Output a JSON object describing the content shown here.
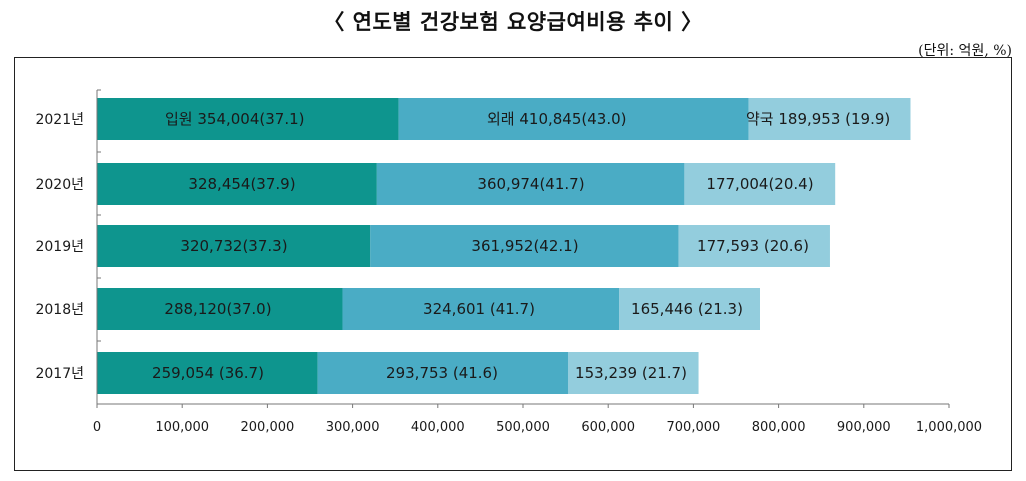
{
  "chart_data": {
    "type": "bar",
    "orientation": "horizontal",
    "stacked": true,
    "title": "〈 연도별 건강보험 요양급여비용 추이 〉",
    "unit_note": "(단위: 억원, %)",
    "categories": [
      "2021년",
      "2020년",
      "2019년",
      "2018년",
      "2017년"
    ],
    "series": [
      {
        "name": "입원",
        "color": "#0e958e",
        "values": [
          354004,
          328454,
          320732,
          288120,
          259054
        ],
        "labels": [
          "입원 354,004(37.1)",
          "328,454(37.9)",
          "320,732(37.3)",
          "288,120(37.0)",
          "259,054 (36.7)"
        ]
      },
      {
        "name": "외래",
        "color": "#4aacc5",
        "values": [
          410845,
          360974,
          361952,
          324601,
          293753
        ],
        "labels": [
          "외래 410,845(43.0)",
          "360,974(41.7)",
          "361,952(42.1)",
          "324,601 (41.7)",
          "293,753 (41.6)"
        ]
      },
      {
        "name": "약국",
        "color": "#93cddd",
        "values": [
          189953,
          177004,
          177593,
          165446,
          153239
        ],
        "labels": [
          "약국 189,953 (19.9)",
          "177,004(20.4)",
          "177,593 (20.6)",
          "165,446 (21.3)",
          "153,239 (21.7)"
        ]
      }
    ],
    "xlim": [
      0,
      1000000
    ],
    "xticks": [
      0,
      100000,
      200000,
      300000,
      400000,
      500000,
      600000,
      700000,
      800000,
      900000,
      1000000
    ],
    "xtick_labels": [
      "0",
      "100,000",
      "200,000",
      "300,000",
      "400,000",
      "500,000",
      "600,000",
      "700,000",
      "800,000",
      "900,000",
      "1,000,000"
    ],
    "grid": false,
    "legend": "none"
  }
}
